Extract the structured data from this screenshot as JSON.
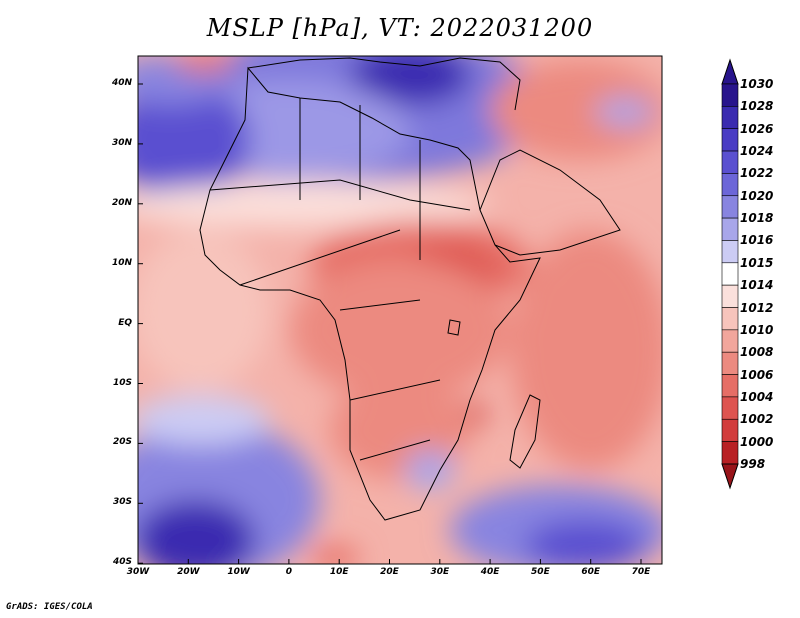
{
  "title": "MSLP [hPa], VT: 2022031200",
  "credit": "GrADS: IGES/COLA",
  "colors": {
    "low_pressure": "#c8282c",
    "high_pressure": "#2a1fa0",
    "neutral": "#ffffff"
  },
  "lat_labels": [
    "40N",
    "30N",
    "20N",
    "10N",
    "EQ",
    "10S",
    "20S",
    "30S",
    "40S"
  ],
  "lon_labels": [
    "30W",
    "20W",
    "10W",
    "0",
    "10E",
    "20E",
    "30E",
    "40E",
    "50E",
    "60E",
    "70E"
  ],
  "colorbar": {
    "labels": [
      "1030",
      "1028",
      "1026",
      "1024",
      "1022",
      "1020",
      "1018",
      "1016",
      "1015",
      "1014",
      "1012",
      "1010",
      "1008",
      "1006",
      "1004",
      "1002",
      "1000",
      "998"
    ],
    "colors": [
      "#28148c",
      "#3a2bb0",
      "#4a3cc4",
      "#5a50d0",
      "#6c66d8",
      "#8884e0",
      "#a8a6ea",
      "#ccccf4",
      "#ffffff",
      "#fbe0dc",
      "#f7c4bc",
      "#f2a69c",
      "#ec8a80",
      "#e66e66",
      "#de5450",
      "#d23c3c",
      "#b82024",
      "#98141a"
    ]
  }
}
